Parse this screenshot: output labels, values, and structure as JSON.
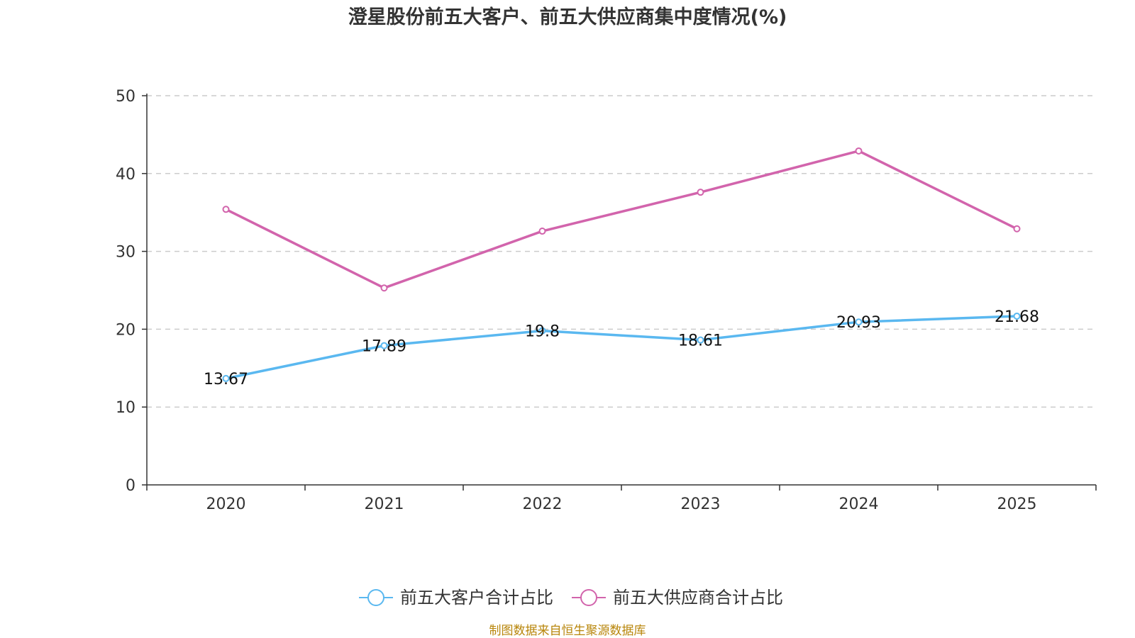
{
  "chart_data": {
    "type": "line",
    "title": "澄星股份前五大客户、前五大供应商集中度情况(%)",
    "categories": [
      "2020",
      "2021",
      "2022",
      "2023",
      "2024",
      "2025"
    ],
    "ylim": [
      0,
      50
    ],
    "yticks": [
      0,
      10,
      20,
      30,
      40,
      50
    ],
    "grid": true,
    "legend_position": "bottom",
    "series": [
      {
        "name": "前五大客户合计占比",
        "color": "#5ab8f0",
        "values": [
          13.67,
          17.89,
          19.8,
          18.61,
          20.93,
          21.68
        ],
        "labels": [
          "13.67",
          "17.89",
          "19.8",
          "18.61",
          "20.93",
          "21.68"
        ]
      },
      {
        "name": "前五大供应商合计占比",
        "color": "#d264ac",
        "values": [
          35.4,
          25.3,
          32.6,
          37.6,
          42.9,
          32.9
        ],
        "labels": null
      }
    ]
  },
  "source": "制图数据来自恒生聚源数据库"
}
